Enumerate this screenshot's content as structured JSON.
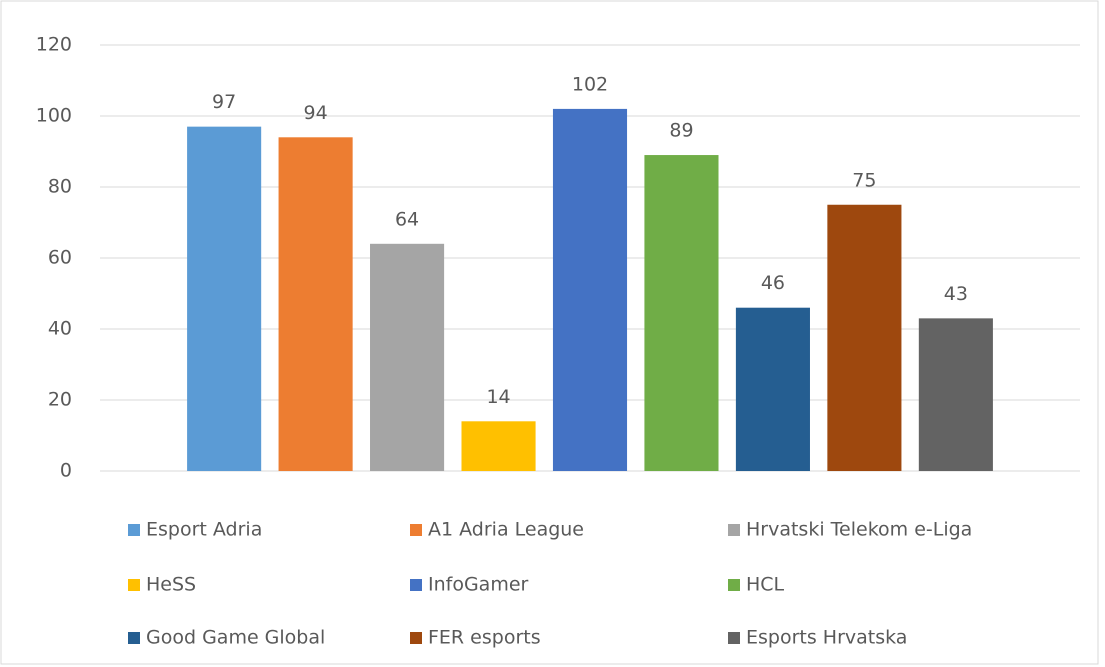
{
  "chart_data": {
    "type": "bar",
    "categories": [
      null
    ],
    "series": [
      {
        "name": "Esport Adria",
        "color": "#5B9BD5",
        "values": [
          97
        ]
      },
      {
        "name": "A1 Adria League",
        "color": "#ED7D31",
        "values": [
          94
        ]
      },
      {
        "name": "Hrvatski Telekom e-Liga",
        "color": "#A5A5A5",
        "values": [
          64
        ]
      },
      {
        "name": "HeSS",
        "color": "#FFC000",
        "values": [
          14
        ]
      },
      {
        "name": "InfoGamer",
        "color": "#4472C4",
        "values": [
          102
        ]
      },
      {
        "name": "HCL",
        "color": "#70AD47",
        "values": [
          89
        ]
      },
      {
        "name": "Good Game Global",
        "color": "#255E91",
        "values": [
          46
        ]
      },
      {
        "name": "FER esports",
        "color": "#9E480E",
        "values": [
          75
        ]
      },
      {
        "name": "Esports Hrvatska",
        "color": "#636363",
        "values": [
          43
        ]
      }
    ],
    "ylim": [
      0,
      120
    ],
    "yticks": [
      0,
      20,
      40,
      60,
      80,
      100,
      120
    ],
    "grid": true,
    "legend": "bottom"
  }
}
